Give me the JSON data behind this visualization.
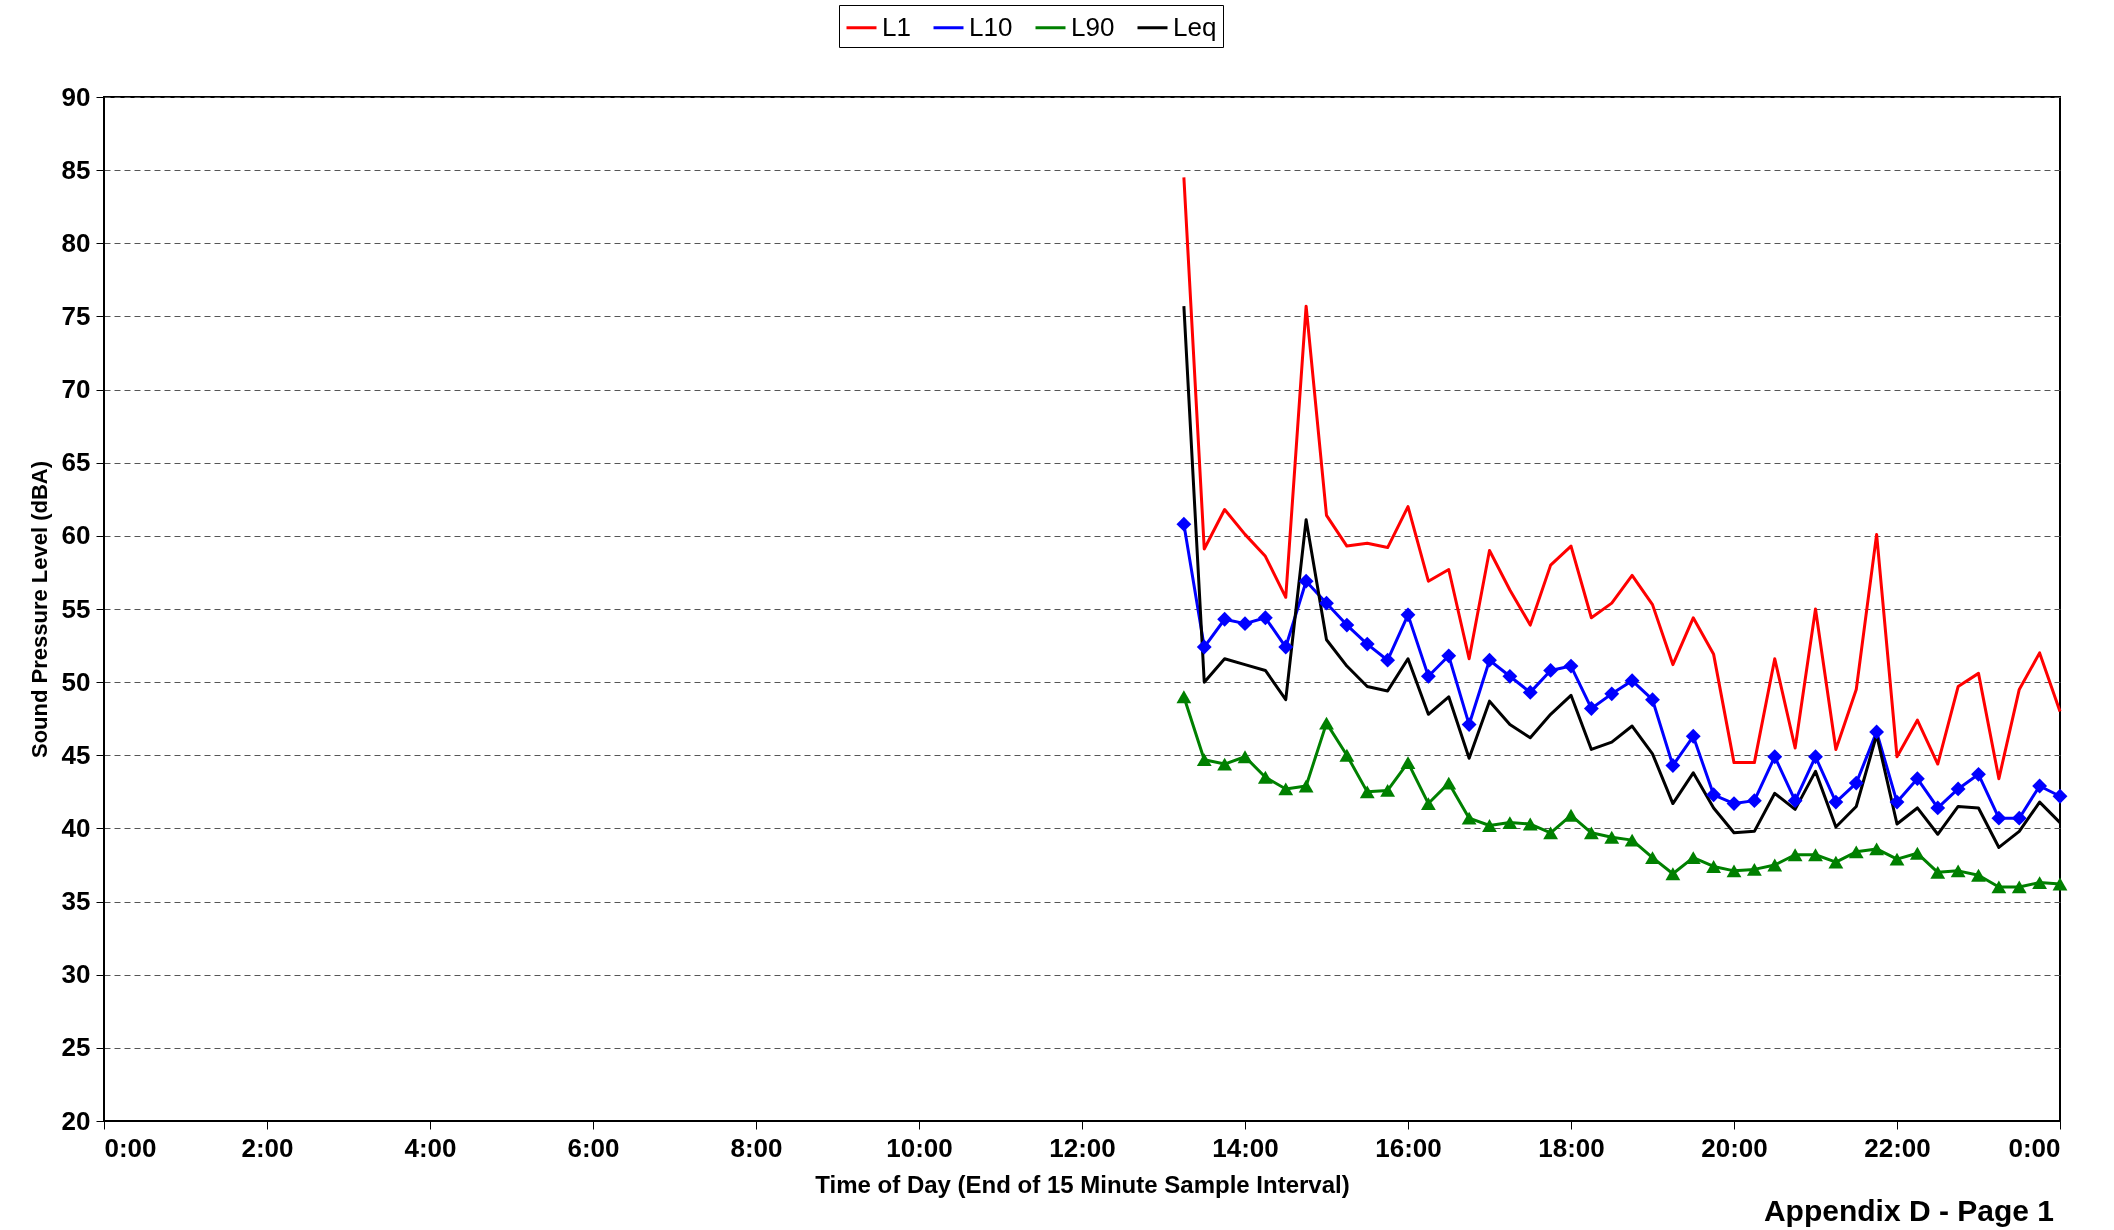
{
  "chart_data": {
    "type": "line",
    "xlabel": "Time of Day (End of 15 Minute Sample Interval)",
    "ylabel": "Sound Pressure Level (dBA)",
    "x": [
      13.25,
      13.5,
      13.75,
      14,
      14.25,
      14.5,
      14.75,
      15,
      15.25,
      15.5,
      15.75,
      16,
      16.25,
      16.5,
      16.75,
      17,
      17.25,
      17.5,
      17.75,
      18,
      18.25,
      18.5,
      18.75,
      19,
      19.25,
      19.5,
      19.75,
      20,
      20.25,
      20.5,
      20.75,
      21,
      21.25,
      21.5,
      21.75,
      22,
      22.25,
      22.5,
      22.75,
      23,
      23.25,
      23.5,
      23.75,
      24
    ],
    "series": [
      {
        "name": "L1",
        "color": "#ff0000",
        "marker": "none",
        "values": [
          84.5,
          59.1,
          61.8,
          60.1,
          58.6,
          55.8,
          75.7,
          61.4,
          59.3,
          59.5,
          59.2,
          62.0,
          56.9,
          57.7,
          51.6,
          59.0,
          56.3,
          53.9,
          58.0,
          59.3,
          54.4,
          55.4,
          57.3,
          55.3,
          51.2,
          54.4,
          51.9,
          44.5,
          44.5,
          51.6,
          45.5,
          55.0,
          45.4,
          49.5,
          60.1,
          44.9,
          47.4,
          44.4,
          49.7,
          50.6,
          43.4,
          49.5,
          52.0,
          48.0
        ]
      },
      {
        "name": "L10",
        "color": "#0000ff",
        "marker": "diamond",
        "values": [
          60.8,
          52.4,
          54.3,
          54.0,
          54.4,
          52.4,
          56.9,
          55.4,
          53.9,
          52.6,
          51.5,
          54.6,
          50.4,
          51.8,
          47.1,
          51.5,
          50.4,
          49.3,
          50.8,
          51.1,
          48.2,
          49.2,
          50.1,
          48.8,
          44.3,
          46.3,
          42.3,
          41.7,
          41.9,
          44.9,
          41.9,
          44.9,
          41.8,
          43.1,
          46.6,
          41.8,
          43.4,
          41.4,
          42.7,
          43.7,
          40.7,
          40.7,
          42.9,
          42.2
        ]
      },
      {
        "name": "L90",
        "color": "#008000",
        "marker": "triangle",
        "values": [
          49.0,
          44.7,
          44.4,
          44.9,
          43.5,
          42.7,
          42.9,
          47.2,
          45.0,
          42.5,
          42.6,
          44.5,
          41.7,
          43.1,
          40.7,
          40.2,
          40.4,
          40.3,
          39.7,
          40.9,
          39.7,
          39.4,
          39.2,
          38.0,
          36.9,
          38.0,
          37.4,
          37.1,
          37.2,
          37.5,
          38.2,
          38.2,
          37.7,
          38.4,
          38.6,
          37.9,
          38.3,
          37.0,
          37.1,
          36.8,
          36.0,
          36.0,
          36.3,
          36.2
        ]
      },
      {
        "name": "Leq",
        "color": "#000000",
        "marker": "none",
        "values": [
          75.7,
          50.0,
          51.6,
          51.2,
          50.8,
          48.8,
          61.1,
          52.9,
          51.1,
          49.7,
          49.4,
          51.6,
          47.8,
          49.0,
          44.8,
          48.7,
          47.1,
          46.2,
          47.8,
          49.1,
          45.4,
          45.9,
          47.0,
          45.1,
          41.7,
          43.8,
          41.4,
          39.7,
          39.8,
          42.4,
          41.3,
          43.9,
          40.1,
          41.5,
          46.4,
          40.3,
          41.4,
          39.6,
          41.5,
          41.4,
          38.7,
          39.8,
          41.8,
          40.4
        ]
      }
    ],
    "xlim": [
      0,
      24
    ],
    "xticks": [
      {
        "value": 0,
        "label": "0:00"
      },
      {
        "value": 2,
        "label": "2:00"
      },
      {
        "value": 4,
        "label": "4:00"
      },
      {
        "value": 6,
        "label": "6:00"
      },
      {
        "value": 8,
        "label": "8:00"
      },
      {
        "value": 10,
        "label": "10:00"
      },
      {
        "value": 12,
        "label": "12:00"
      },
      {
        "value": 14,
        "label": "14:00"
      },
      {
        "value": 16,
        "label": "16:00"
      },
      {
        "value": 18,
        "label": "18:00"
      },
      {
        "value": 20,
        "label": "20:00"
      },
      {
        "value": 22,
        "label": "22:00"
      },
      {
        "value": 24,
        "label": "0:00"
      }
    ],
    "ylim": [
      20,
      90
    ],
    "yticks": [
      20,
      25,
      30,
      35,
      40,
      45,
      50,
      55,
      60,
      65,
      70,
      75,
      80,
      85,
      90
    ],
    "grid": "y",
    "legend": "top",
    "line_style": "solid",
    "annotations": [
      "Appendix D - Page 1"
    ]
  }
}
